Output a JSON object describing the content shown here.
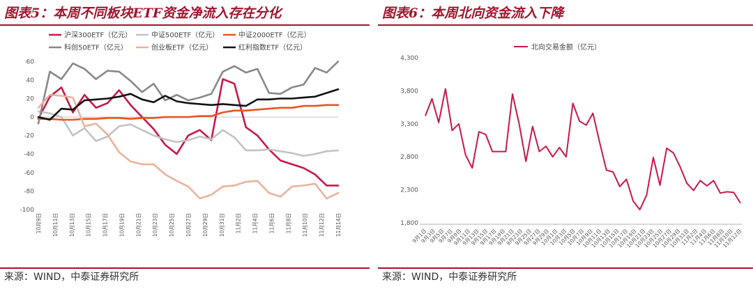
{
  "left": {
    "title": "图表5：本周不同板块ETF资金净流入存在分化",
    "source": "来源：WIND，中泰证券研究所",
    "chart_data": {
      "type": "line",
      "ylim": [
        -100,
        70
      ],
      "yticks": [
        -100,
        -80,
        -60,
        -40,
        -20,
        0,
        20,
        40,
        60
      ],
      "categories": [
        "10月9日",
        "10月10日",
        "10月11日",
        "10月14日",
        "10月15日",
        "10月16日",
        "10月17日",
        "10月18日",
        "10月21日",
        "10月22日",
        "10月23日",
        "10月24日",
        "10月25日",
        "10月28日",
        "10月29日",
        "10月30日",
        "10月31日",
        "11月1日",
        "11月4日",
        "11月5日",
        "11月6日",
        "11月7日",
        "11月8日",
        "11月11日",
        "11月12日",
        "11月13日",
        "11月14日"
      ],
      "tick_labels": [
        "10月9日",
        "10月11日",
        "10月13日",
        "10月15日",
        "10月17日",
        "10月19日",
        "10月21日",
        "10月23日",
        "10月25日",
        "10月27日",
        "10月29日",
        "10月31日",
        "11月2日",
        "11月4日",
        "11月6日",
        "11月8日",
        "11月10日",
        "11月12日",
        "11月14日"
      ],
      "series": [
        {
          "name": "沪深300ETF（亿元）",
          "color": "#c8174a",
          "values": [
            -2,
            22,
            32,
            5,
            24,
            10,
            15,
            29,
            13,
            0,
            -13,
            -30,
            -40,
            -20,
            -14,
            -25,
            41,
            36,
            -11,
            -20,
            -35,
            -47,
            -51,
            -55,
            -62,
            -74,
            -74
          ]
        },
        {
          "name": "中证500ETF（亿元）",
          "color": "#c3c3c3",
          "values": [
            6,
            4,
            0,
            -20,
            -12,
            -26,
            -21,
            -10,
            -8,
            -14,
            -20,
            -24,
            -27,
            -25,
            -21,
            -24,
            -14,
            -22,
            -36,
            -36,
            -35,
            -37,
            -39,
            -42,
            -40,
            -37,
            -36
          ]
        },
        {
          "name": "中证2000ETF（亿元）",
          "color": "#e8551e",
          "values": [
            -2,
            -2,
            -3,
            -3,
            -2,
            -2,
            -1,
            -1,
            -2,
            -1,
            -1,
            0,
            0,
            0,
            1,
            1,
            5,
            7,
            7,
            8,
            9,
            10,
            10,
            12,
            12,
            13,
            13
          ]
        },
        {
          "name": "科创50ETF（亿元）",
          "color": "#888888",
          "values": [
            -7,
            49,
            41,
            58,
            52,
            41,
            50,
            49,
            39,
            27,
            36,
            18,
            24,
            18,
            21,
            25,
            49,
            55,
            48,
            52,
            26,
            25,
            32,
            35,
            53,
            48,
            60
          ]
        },
        {
          "name": "创业板ETF（亿元）",
          "color": "#e8b39c",
          "values": [
            10,
            24,
            23,
            21,
            -10,
            -7,
            -19,
            -38,
            -48,
            -51,
            -51,
            -62,
            -69,
            -75,
            -88,
            -84,
            -75,
            -74,
            -70,
            -69,
            -82,
            -86,
            -75,
            -74,
            -72,
            -88,
            -82
          ]
        },
        {
          "name": "红利指数ETF（亿元）",
          "color": "#111111",
          "values": [
            0,
            -3,
            9,
            8,
            18,
            19,
            20,
            22,
            25,
            19,
            16,
            23,
            17,
            15,
            14,
            13,
            14,
            13,
            12,
            19,
            19,
            20,
            20,
            21,
            22,
            26,
            30
          ]
        }
      ]
    }
  },
  "right": {
    "title": "图表6：本周北向资金流入下降",
    "source": "来源：WIND，中泰证券研究所",
    "chart_data": {
      "type": "line",
      "ylim": [
        1800,
        4300
      ],
      "ytick_labels": [
        "1,800",
        "2,300",
        "2,800",
        "3,300",
        "3,800",
        "4,300"
      ],
      "yticks": [
        1800,
        2300,
        2800,
        3300,
        3800,
        4300
      ],
      "series": [
        {
          "name": "北向交易金额（亿元）",
          "color": "#c8174a",
          "values": [
            3420,
            3680,
            3320,
            3830,
            3200,
            3300,
            2830,
            2630,
            3180,
            3140,
            2880,
            2880,
            2880,
            3750,
            3300,
            2730,
            3260,
            2880,
            2960,
            2800,
            2940,
            2800,
            3610,
            3340,
            3280,
            3460,
            3020,
            2600,
            2570,
            2350,
            2460,
            2130,
            2000,
            2220,
            2790,
            2370,
            2930,
            2860,
            2650,
            2400,
            2290,
            2440,
            2360,
            2440,
            2250,
            2270,
            2260,
            2100
          ]
        }
      ],
      "tick_labels": [
        "9月1日",
        "9月3日",
        "9月5日",
        "9月7日",
        "9月9日",
        "9月11日",
        "9月13日",
        "9月15日",
        "9月17日",
        "9月19日",
        "9月21日",
        "9月23日",
        "9月25日",
        "9月27日",
        "9月29日",
        "10月1日",
        "10月3日",
        "10月5日",
        "10月7日",
        "10月9日",
        "10月11日",
        "10月13日",
        "10月15日",
        "10月17日",
        "10月19日",
        "10月21日",
        "10月23日",
        "10月25日",
        "10月27日",
        "10月29日",
        "10月31日",
        "11月2日",
        "11月4日",
        "11月6日",
        "11月8日",
        "11月10日",
        "11月12日"
      ],
      "visible_tick_labels": [
        "9月1日",
        "9月3日",
        "9月5日",
        "9月7日",
        "9月9日",
        "9月11日",
        "9月13日",
        "9月15日",
        "9月17日",
        "9月19日",
        "9月21日",
        "9月23日",
        "9月25日",
        "9月27日",
        "9月29日",
        "10月1日",
        "10月3日",
        "10月5日",
        "10月7日",
        "10月9日",
        "10月11日",
        "10月13日",
        "10月15日",
        "10月17日",
        "10月19日",
        "10月21日",
        "10月23日",
        "10月25日",
        "10月27日",
        "10月29日",
        "10月31日",
        "11月2日",
        "11月4日",
        "11月6日",
        "11月8日",
        "11月10日",
        "11月12日"
      ]
    }
  }
}
